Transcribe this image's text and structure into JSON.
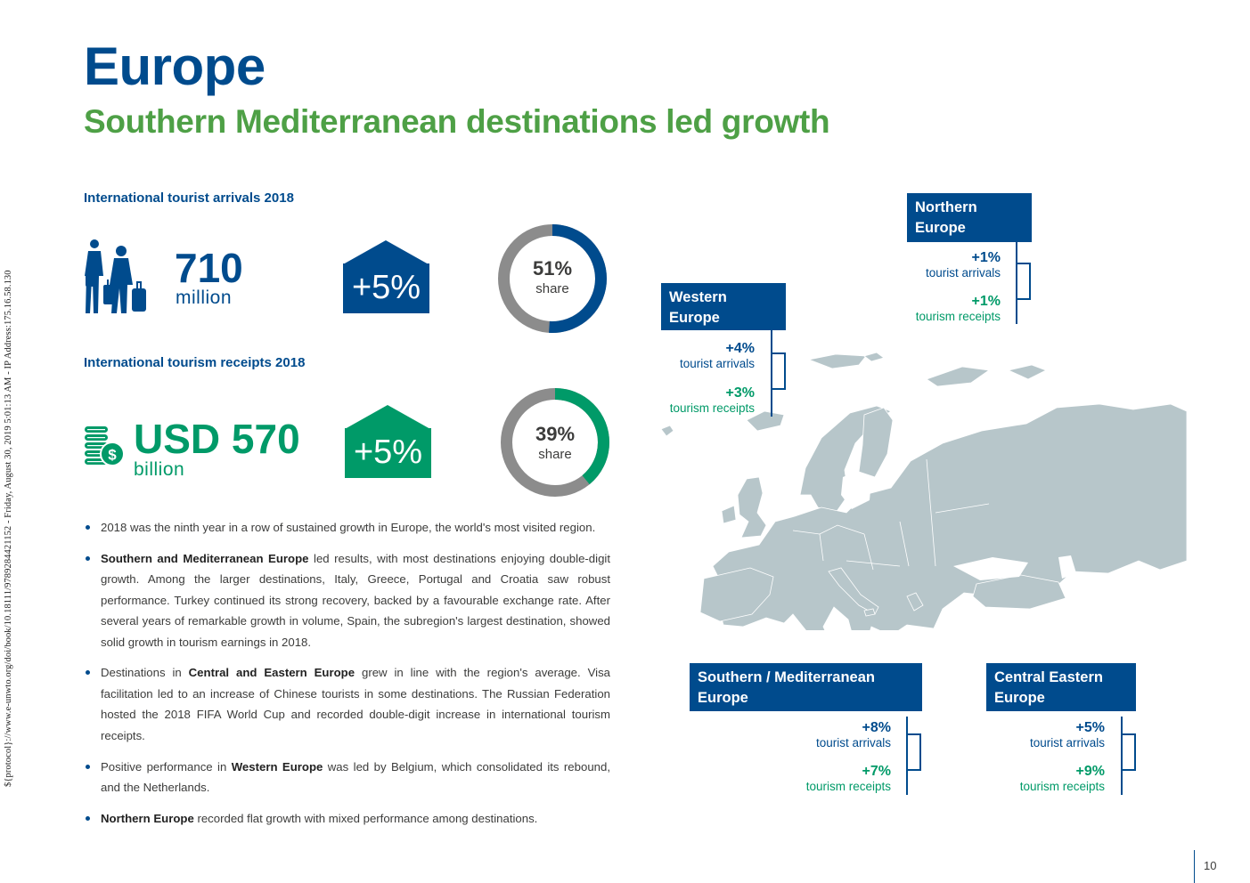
{
  "side_note": "${protocol}://www.e-unwto.org/doi/book/10.18111/9789284421152 - Friday, August 30, 2019 5:01:13 AM - IP Address:175.16.58.130",
  "title": "Europe",
  "subtitle": "Southern Mediterranean destinations led growth",
  "arrivals": {
    "label": "International tourist arrivals 2018",
    "icon": "travellers-icon",
    "value": "710",
    "unit": "million",
    "growth": "+5%",
    "share_pct": "51%",
    "share_word": "share",
    "share_fraction": 0.51,
    "color": "#004b8d"
  },
  "receipts": {
    "label": "International tourism receipts 2018",
    "icon": "coins-dollar-icon",
    "value": "USD 570",
    "unit": "billion",
    "growth": "+5%",
    "share_pct": "39%",
    "share_word": "share",
    "share_fraction": 0.39,
    "color": "#009a68"
  },
  "bullets": [
    {
      "pre": "2018 was the ninth year in a row of sustained growth in Europe, the world's most visited region.",
      "bold": "",
      "post": ""
    },
    {
      "pre": "",
      "bold": "Southern and Mediterranean Europe",
      "post": " led results, with most destinations enjoying double-digit growth. Among the larger destinations, Italy, Greece, Portugal and Croatia saw robust performance. Turkey continued its strong recovery, backed by a favourable exchange rate. After several years of remarkable growth in volume, Spain, the subregion's largest destination, showed solid growth in tourism earnings in 2018."
    },
    {
      "pre": "Destinations in ",
      "bold": "Central and Eastern Europe",
      "post": " grew in line with the region's average. Visa facilitation led to an increase of Chinese tourists in some destinations. The Russian Federation hosted the 2018 FIFA World Cup and recorded double-digit increase in international tourism receipts."
    },
    {
      "pre": "Positive performance in ",
      "bold": "Western Europe",
      "post": " was led by Belgium, which consolidated its rebound, and the Netherlands."
    },
    {
      "pre": "",
      "bold": "Northern Europe",
      "post": " recorded flat growth with mixed performance among destinations."
    }
  ],
  "regions": {
    "northern": {
      "name_line1": "Northern",
      "name_line2": "Europe",
      "arrivals": "+1%",
      "arrivals_label": "tourist arrivals",
      "receipts": "+1%",
      "receipts_label": "tourism receipts"
    },
    "western": {
      "name_line1": "Western",
      "name_line2": "Europe",
      "arrivals": "+4%",
      "arrivals_label": "tourist arrivals",
      "receipts": "+3%",
      "receipts_label": "tourism receipts"
    },
    "southern": {
      "name_line1": "Southern / Mediterranean",
      "name_line2": "Europe",
      "arrivals": "+8%",
      "arrivals_label": "tourist arrivals",
      "receipts": "+7%",
      "receipts_label": "tourism receipts"
    },
    "central": {
      "name_line1": "Central Eastern",
      "name_line2": "Europe",
      "arrivals": "+5%",
      "arrivals_label": "tourist arrivals",
      "receipts": "+9%",
      "receipts_label": "tourism receipts"
    }
  },
  "map_icon": "europe-map",
  "page_number": "10",
  "colors": {
    "blue": "#004b8d",
    "green": "#009a68",
    "title_green": "#4ea046",
    "grey": "#8c8c8c",
    "map": "#b7c6ca"
  }
}
